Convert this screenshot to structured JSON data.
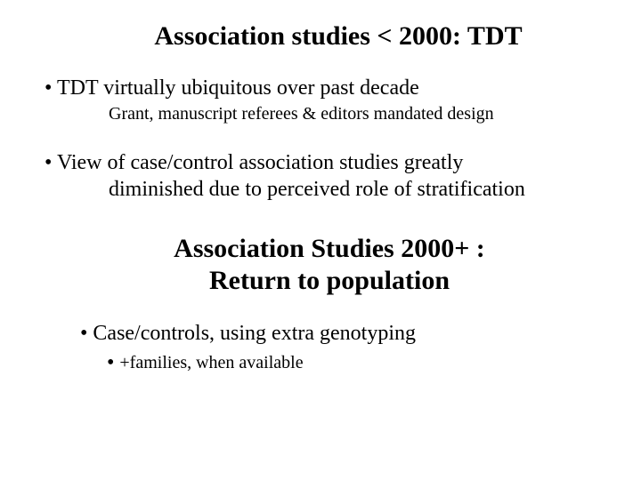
{
  "colors": {
    "text": "#000000",
    "background": "#ffffff"
  },
  "typography": {
    "family": "Times New Roman",
    "title_pt": 30,
    "body_pt": 24,
    "sub_pt": 20,
    "title_weight": "bold"
  },
  "title1": "Association studies < 2000: TDT",
  "bullet1": "• TDT virtually ubiquitous over past decade",
  "bullet1_sub": "Grant, manuscript referees & editors mandated design",
  "bullet2_line1": "• View of case/control association studies greatly",
  "bullet2_line2": "diminished due to perceived role of stratification",
  "title2_line1": "Association Studies 2000+ :",
  "title2_line2": "Return to population",
  "bullet3": "• Case/controls, using extra genotyping",
  "bullet3_sub_dot": "•",
  "bullet3_sub": "+families, when available"
}
